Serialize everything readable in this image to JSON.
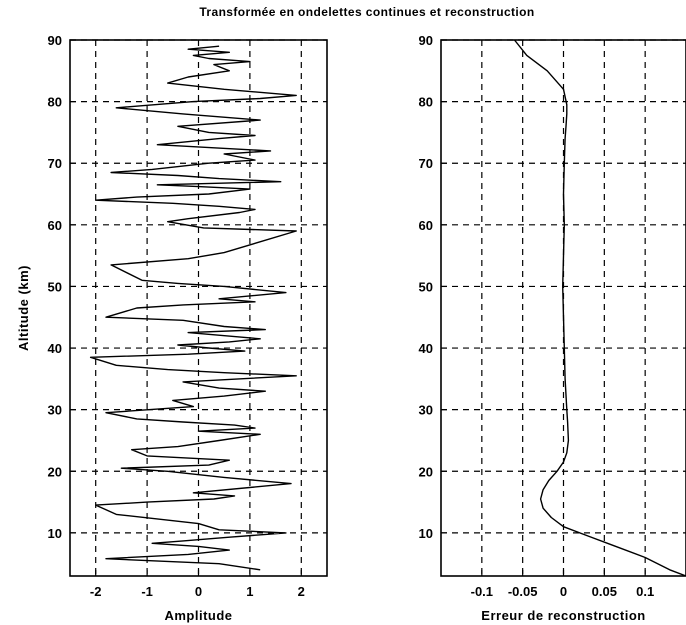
{
  "title": "Transformée en ondelettes continues et reconstruction",
  "chart_data": [
    {
      "type": "line",
      "xlabel": "Amplitude",
      "ylabel": "Altitude (km)",
      "xlim": [
        -2.5,
        2.5
      ],
      "ylim": [
        3,
        90
      ],
      "xticks": [
        -2,
        -1,
        0,
        1,
        2
      ],
      "xtick_labels": [
        "-2",
        "-1",
        "0",
        "1",
        "2"
      ],
      "yticks": [
        10,
        20,
        30,
        40,
        50,
        60,
        70,
        80,
        90
      ],
      "ytick_labels": [
        "10",
        "20",
        "30",
        "40",
        "50",
        "60",
        "70",
        "80",
        "90"
      ],
      "grid": true,
      "series": [
        {
          "color": "#000000",
          "x": [
            1.2,
            0.4,
            -1.0,
            -1.8,
            -0.2,
            0.6,
            0.0,
            -0.9,
            -0.3,
            0.6,
            1.7,
            0.4,
            0.0,
            -1.6,
            -2.0,
            -1.0,
            0.3,
            0.7,
            -0.1,
            1.8,
            0.5,
            -0.6,
            -1.5,
            0.2,
            0.6,
            -1.0,
            -1.3,
            -0.4,
            0.4,
            1.2,
            0.0,
            1.1,
            0.7,
            -0.3,
            -1.2,
            -1.8,
            -0.1,
            -0.5,
            0.5,
            1.3,
            0.4,
            -0.3,
            1.9,
            0.5,
            -0.6,
            -1.6,
            -2.1,
            -0.2,
            0.9,
            0.2,
            -0.4,
            0.6,
            1.2,
            -0.2,
            1.3,
            0.5,
            -0.3,
            -1.8,
            -1.2,
            -0.3,
            1.1,
            0.4,
            1.7,
            0.5,
            -0.4,
            -1.1,
            -1.7,
            -0.2,
            0.5,
            1.9,
            0.1,
            -0.6,
            -0.2,
            0.8,
            1.1,
            0.4,
            -0.5,
            -2.0,
            -1.2,
            0.2,
            1.0,
            0.0,
            -0.8,
            1.6,
            0.4,
            -0.4,
            -1.7,
            -0.9,
            0.2,
            1.1,
            0.5,
            1.4,
            0.3,
            -0.8,
            0.4,
            1.1,
            0.2,
            -0.4,
            1.2,
            -0.3,
            -1.6,
            -0.1,
            1.2,
            1.9,
            0.5,
            -0.6,
            -0.2,
            0.6,
            0.3,
            1.0,
            0.2,
            -0.1,
            0.6,
            -0.2,
            0.4
          ],
          "y": [
            4.0,
            5.0,
            5.5,
            5.8,
            6.5,
            7.2,
            7.8,
            8.3,
            8.7,
            9.3,
            10.0,
            10.5,
            11.5,
            13.0,
            14.5,
            15.0,
            15.5,
            16.0,
            16.5,
            18.0,
            19.0,
            20.0,
            20.5,
            21.0,
            21.8,
            22.5,
            23.5,
            24.0,
            25.0,
            26.0,
            26.5,
            27.0,
            27.5,
            28.0,
            28.5,
            29.5,
            30.5,
            31.5,
            32.2,
            33.0,
            33.5,
            34.5,
            35.5,
            36.0,
            36.5,
            37.2,
            38.5,
            39.0,
            39.5,
            40.0,
            40.5,
            41.0,
            41.5,
            42.5,
            43.0,
            43.5,
            44.5,
            45.0,
            46.5,
            47.0,
            47.5,
            48.0,
            49.0,
            50.0,
            50.5,
            51.0,
            53.5,
            54.5,
            55.5,
            59.0,
            59.5,
            60.5,
            61.0,
            62.0,
            62.5,
            63.0,
            63.5,
            64.0,
            64.5,
            65.0,
            65.8,
            66.2,
            66.5,
            67.0,
            67.5,
            68.0,
            68.5,
            69.0,
            70.0,
            70.5,
            71.5,
            72.0,
            72.5,
            73.0,
            74.0,
            74.5,
            75.0,
            76.0,
            77.0,
            78.0,
            79.0,
            80.0,
            80.5,
            81.0,
            82.0,
            83.0,
            84.0,
            85.0,
            86.0,
            86.5,
            87.0,
            87.5,
            88.0,
            88.5,
            89.0
          ]
        }
      ]
    },
    {
      "type": "line",
      "xlabel": "Erreur de reconstruction",
      "ylabel": "",
      "xlim": [
        -0.15,
        0.15
      ],
      "ylim": [
        3,
        90
      ],
      "xticks": [
        -0.1,
        -0.05,
        0,
        0.05,
        0.1
      ],
      "xtick_labels": [
        "-0.1",
        "-0.05",
        "0",
        "0.05",
        "0.1"
      ],
      "yticks": [
        10,
        20,
        30,
        40,
        50,
        60,
        70,
        80,
        90
      ],
      "ytick_labels": [
        "10",
        "20",
        "30",
        "40",
        "50",
        "60",
        "70",
        "80",
        "90"
      ],
      "grid": true,
      "series": [
        {
          "color": "#000000",
          "x": [
            0.15,
            0.13,
            0.1,
            0.06,
            0.03,
            0.0,
            -0.015,
            -0.025,
            -0.028,
            -0.025,
            -0.018,
            -0.008,
            0.0,
            0.004,
            0.006,
            0.005,
            0.004,
            0.002,
            0.001,
            0.0,
            -0.001,
            0.0,
            0.001,
            0.0,
            0.001,
            0.002,
            0.003,
            0.004,
            0.004,
            0.0,
            -0.02,
            -0.045,
            -0.06
          ],
          "y": [
            3.0,
            4.0,
            6.0,
            8.0,
            9.5,
            11.0,
            12.5,
            14.0,
            15.5,
            17.0,
            18.5,
            20.0,
            21.5,
            23.0,
            25.0,
            28.0,
            30.0,
            35.0,
            40.0,
            45.0,
            50.0,
            55.0,
            60.0,
            65.0,
            70.0,
            74.0,
            76.0,
            78.0,
            79.5,
            82.0,
            85.0,
            87.5,
            90.0
          ]
        }
      ]
    }
  ]
}
